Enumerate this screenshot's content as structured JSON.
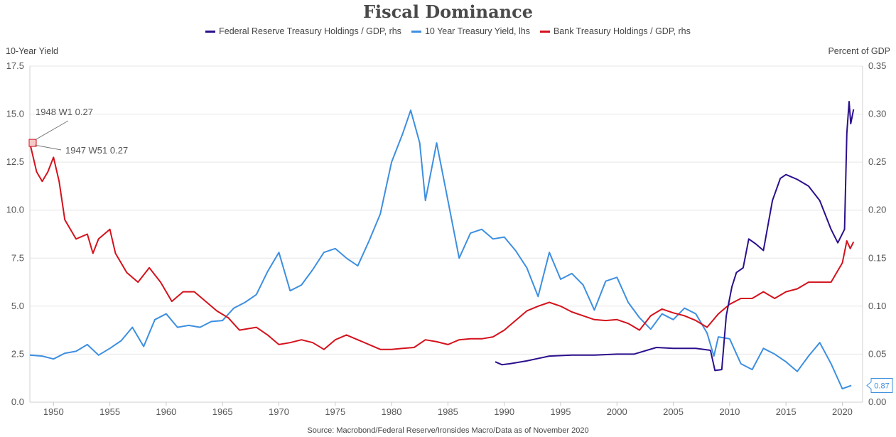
{
  "chart_data": {
    "type": "line",
    "title": "Fiscal Dominance",
    "source": "Source: Macrobond/Federal Reserve/Ironsides Macro/Data as of November 2020",
    "y_left_label": "10-Year Yield",
    "y_right_label": "Percent of GDP",
    "xlim": [
      1947.9,
      2021.8
    ],
    "ylim_left": [
      0,
      17.5
    ],
    "ylim_right": [
      0,
      0.35
    ],
    "x_ticks": [
      1950,
      1955,
      1960,
      1965,
      1970,
      1975,
      1980,
      1985,
      1990,
      1995,
      2000,
      2005,
      2010,
      2015,
      2020
    ],
    "y_left_ticks": [
      "0.0",
      "2.5",
      "5.0",
      "7.5",
      "10.0",
      "12.5",
      "15.0",
      "17.5"
    ],
    "y_right_ticks": [
      "0.00",
      "0.05",
      "0.10",
      "0.15",
      "0.20",
      "0.25",
      "0.30",
      "0.35"
    ],
    "grid": true,
    "legend_position": "top",
    "series": [
      {
        "name": "Federal Reserve Treasury Holdings / GDP, rhs",
        "axis": "right",
        "color": "#2b0f8c",
        "points": [
          [
            1989.2,
            0.042
          ],
          [
            1989.8,
            0.039
          ],
          [
            1990.5,
            0.04
          ],
          [
            1992,
            0.043
          ],
          [
            1994,
            0.048
          ],
          [
            1996,
            0.049
          ],
          [
            1998,
            0.049
          ],
          [
            2000,
            0.05
          ],
          [
            2001.5,
            0.05
          ],
          [
            2003.5,
            0.057
          ],
          [
            2005,
            0.056
          ],
          [
            2007,
            0.056
          ],
          [
            2008.3,
            0.054
          ],
          [
            2008.7,
            0.033
          ],
          [
            2009.3,
            0.034
          ],
          [
            2009.7,
            0.09
          ],
          [
            2010.2,
            0.12
          ],
          [
            2010.6,
            0.135
          ],
          [
            2011.2,
            0.14
          ],
          [
            2011.7,
            0.17
          ],
          [
            2012.3,
            0.165
          ],
          [
            2013,
            0.158
          ],
          [
            2013.8,
            0.21
          ],
          [
            2014.5,
            0.233
          ],
          [
            2015,
            0.237
          ],
          [
            2016,
            0.232
          ],
          [
            2017,
            0.225
          ],
          [
            2018,
            0.21
          ],
          [
            2019,
            0.18
          ],
          [
            2019.6,
            0.166
          ],
          [
            2020.2,
            0.18
          ],
          [
            2020.4,
            0.28
          ],
          [
            2020.6,
            0.313
          ],
          [
            2020.75,
            0.29
          ],
          [
            2021,
            0.305
          ]
        ]
      },
      {
        "name": "10 Year Treasury Yield, lhs",
        "axis": "left",
        "color": "#3d8fe0",
        "points": [
          [
            1947.9,
            2.45
          ],
          [
            1949,
            2.4
          ],
          [
            1950,
            2.25
          ],
          [
            1951,
            2.55
          ],
          [
            1952,
            2.65
          ],
          [
            1953,
            3.0
          ],
          [
            1954,
            2.45
          ],
          [
            1955,
            2.8
          ],
          [
            1956,
            3.2
          ],
          [
            1957,
            3.9
          ],
          [
            1958,
            2.9
          ],
          [
            1959,
            4.3
          ],
          [
            1960,
            4.6
          ],
          [
            1961,
            3.9
          ],
          [
            1962,
            4.0
          ],
          [
            1963,
            3.9
          ],
          [
            1964,
            4.2
          ],
          [
            1965,
            4.25
          ],
          [
            1966,
            4.9
          ],
          [
            1967,
            5.2
          ],
          [
            1968,
            5.6
          ],
          [
            1969,
            6.8
          ],
          [
            1970,
            7.8
          ],
          [
            1971,
            5.8
          ],
          [
            1972,
            6.1
          ],
          [
            1973,
            6.9
          ],
          [
            1974,
            7.8
          ],
          [
            1975,
            8.0
          ],
          [
            1976,
            7.5
          ],
          [
            1977,
            7.1
          ],
          [
            1978,
            8.4
          ],
          [
            1979,
            9.8
          ],
          [
            1980,
            12.5
          ],
          [
            1981,
            14.0
          ],
          [
            1981.7,
            15.2
          ],
          [
            1982.5,
            13.5
          ],
          [
            1983,
            10.5
          ],
          [
            1984,
            13.5
          ],
          [
            1985,
            10.5
          ],
          [
            1986,
            7.5
          ],
          [
            1987,
            8.8
          ],
          [
            1988,
            9.0
          ],
          [
            1989,
            8.5
          ],
          [
            1990,
            8.6
          ],
          [
            1991,
            7.9
          ],
          [
            1992,
            7.0
          ],
          [
            1993,
            5.5
          ],
          [
            1994,
            7.8
          ],
          [
            1995,
            6.4
          ],
          [
            1996,
            6.7
          ],
          [
            1997,
            6.1
          ],
          [
            1998,
            4.8
          ],
          [
            1999,
            6.3
          ],
          [
            2000,
            6.5
          ],
          [
            2001,
            5.2
          ],
          [
            2002,
            4.4
          ],
          [
            2003,
            3.8
          ],
          [
            2004,
            4.6
          ],
          [
            2005,
            4.3
          ],
          [
            2006,
            4.9
          ],
          [
            2007,
            4.6
          ],
          [
            2008,
            3.6
          ],
          [
            2008.6,
            2.4
          ],
          [
            2009,
            3.4
          ],
          [
            2010,
            3.3
          ],
          [
            2011,
            2.0
          ],
          [
            2012,
            1.7
          ],
          [
            2013,
            2.8
          ],
          [
            2014,
            2.5
          ],
          [
            2015,
            2.1
          ],
          [
            2016,
            1.6
          ],
          [
            2017,
            2.4
          ],
          [
            2018,
            3.1
          ],
          [
            2019,
            2.0
          ],
          [
            2020,
            0.7
          ],
          [
            2020.8,
            0.87
          ]
        ]
      },
      {
        "name": "Bank Treasury Holdings / GDP, rhs",
        "axis": "right",
        "color": "#d4121c",
        "points": [
          [
            1947.9,
            0.27
          ],
          [
            1948.5,
            0.24
          ],
          [
            1949,
            0.23
          ],
          [
            1949.5,
            0.24
          ],
          [
            1950,
            0.255
          ],
          [
            1950.5,
            0.23
          ],
          [
            1951,
            0.19
          ],
          [
            1952,
            0.17
          ],
          [
            1953,
            0.175
          ],
          [
            1953.5,
            0.155
          ],
          [
            1954,
            0.17
          ],
          [
            1955,
            0.18
          ],
          [
            1955.5,
            0.155
          ],
          [
            1956.5,
            0.135
          ],
          [
            1957.5,
            0.125
          ],
          [
            1958.5,
            0.14
          ],
          [
            1959.5,
            0.125
          ],
          [
            1960.5,
            0.105
          ],
          [
            1961.5,
            0.115
          ],
          [
            1962.5,
            0.115
          ],
          [
            1963.5,
            0.105
          ],
          [
            1964.5,
            0.095
          ],
          [
            1965.5,
            0.088
          ],
          [
            1966.5,
            0.075
          ],
          [
            1968,
            0.078
          ],
          [
            1969,
            0.07
          ],
          [
            1970,
            0.06
          ],
          [
            1971,
            0.062
          ],
          [
            1972,
            0.065
          ],
          [
            1973,
            0.062
          ],
          [
            1974,
            0.055
          ],
          [
            1975,
            0.065
          ],
          [
            1976,
            0.07
          ],
          [
            1977,
            0.065
          ],
          [
            1978,
            0.06
          ],
          [
            1979,
            0.055
          ],
          [
            1980,
            0.055
          ],
          [
            1981,
            0.056
          ],
          [
            1982,
            0.057
          ],
          [
            1983,
            0.065
          ],
          [
            1984,
            0.063
          ],
          [
            1985,
            0.06
          ],
          [
            1986,
            0.065
          ],
          [
            1987,
            0.066
          ],
          [
            1988,
            0.066
          ],
          [
            1989,
            0.068
          ],
          [
            1990,
            0.075
          ],
          [
            1991,
            0.085
          ],
          [
            1992,
            0.095
          ],
          [
            1993,
            0.1
          ],
          [
            1994,
            0.104
          ],
          [
            1995,
            0.1
          ],
          [
            1996,
            0.094
          ],
          [
            1997,
            0.09
          ],
          [
            1998,
            0.086
          ],
          [
            1999,
            0.085
          ],
          [
            2000,
            0.086
          ],
          [
            2001,
            0.082
          ],
          [
            2002,
            0.075
          ],
          [
            2003,
            0.09
          ],
          [
            2004,
            0.097
          ],
          [
            2005,
            0.093
          ],
          [
            2006,
            0.09
          ],
          [
            2007,
            0.085
          ],
          [
            2008,
            0.078
          ],
          [
            2009,
            0.092
          ],
          [
            2010,
            0.102
          ],
          [
            2011,
            0.108
          ],
          [
            2012,
            0.108
          ],
          [
            2013,
            0.115
          ],
          [
            2014,
            0.108
          ],
          [
            2015,
            0.115
          ],
          [
            2016,
            0.118
          ],
          [
            2017,
            0.125
          ],
          [
            2018,
            0.125
          ],
          [
            2019,
            0.125
          ],
          [
            2020,
            0.145
          ],
          [
            2020.4,
            0.168
          ],
          [
            2020.7,
            0.16
          ],
          [
            2021,
            0.167
          ]
        ]
      }
    ],
    "annotations": [
      {
        "label": "1948 W1 0.27"
      },
      {
        "label": "1947 W51 0.27"
      },
      {
        "label": "0.87"
      }
    ]
  }
}
